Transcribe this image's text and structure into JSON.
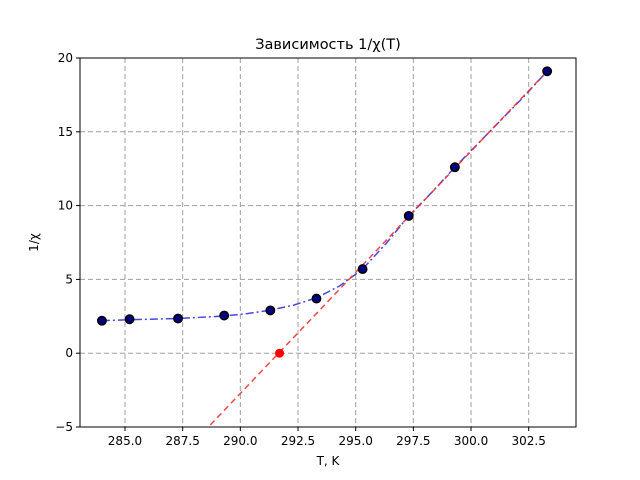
{
  "chart_data": {
    "type": "scatter",
    "title": "Зависимость 1/χ(T)",
    "xlabel": "T, K",
    "ylabel": "1/χ",
    "xlim": [
      283.05,
      304.55
    ],
    "ylim": [
      -5,
      20
    ],
    "xticks": [
      "285.0",
      "287.5",
      "290.0",
      "292.5",
      "295.0",
      "297.5",
      "300.0",
      "302.5"
    ],
    "yticks": [
      "−5",
      "0",
      "5",
      "10",
      "15",
      "20"
    ],
    "xtick_values": [
      285.0,
      287.5,
      290.0,
      292.5,
      295.0,
      297.5,
      300.0,
      302.5
    ],
    "ytick_values": [
      -5,
      0,
      5,
      10,
      15,
      20
    ],
    "grid": true,
    "series": [
      {
        "kind": "points",
        "color": "#000080",
        "edge_color": "#000000",
        "x": [
          284.0,
          285.2,
          287.3,
          289.3,
          291.3,
          293.3,
          295.3,
          297.3,
          299.3,
          303.3
        ],
        "y": [
          2.2,
          2.3,
          2.35,
          2.55,
          2.9,
          3.7,
          5.7,
          9.3,
          12.6,
          19.1
        ]
      },
      {
        "kind": "line",
        "style": "dash-dot",
        "color": "#3333dd",
        "x": [
          284.0,
          285.2,
          287.3,
          289.3,
          290.3,
          291.3,
          292.3,
          293.3,
          294.3,
          295.3,
          296.3,
          297.3,
          298.3,
          299.3,
          300.3,
          301.3,
          302.3,
          303.3
        ],
        "y": [
          2.2,
          2.27,
          2.35,
          2.52,
          2.68,
          2.92,
          3.25,
          3.75,
          4.55,
          5.7,
          7.4,
          9.3,
          10.9,
          12.6,
          14.2,
          15.8,
          17.4,
          19.1
        ]
      },
      {
        "kind": "line",
        "style": "dashed",
        "color": "#ee3333",
        "x": [
          288.4,
          303.3
        ],
        "y": [
          -5.35,
          19.1
        ]
      },
      {
        "kind": "point",
        "color": "#ff0000",
        "x": [
          291.7
        ],
        "y": [
          0.0
        ]
      }
    ]
  }
}
